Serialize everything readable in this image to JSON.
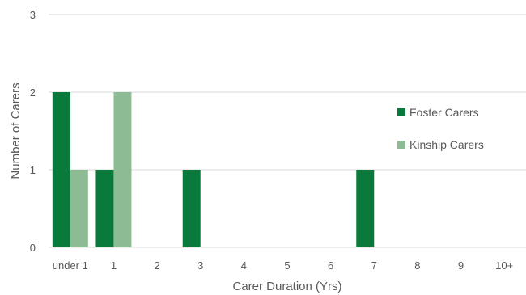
{
  "chart_data": {
    "type": "bar",
    "categories": [
      "under 1",
      "1",
      "2",
      "3",
      "4",
      "5",
      "6",
      "7",
      "8",
      "9",
      "10+"
    ],
    "series": [
      {
        "name": "Foster Carers",
        "values": [
          2,
          1,
          0,
          1,
          0,
          0,
          0,
          1,
          0,
          0,
          0
        ],
        "color": "#0a7a3c"
      },
      {
        "name": "Kinship Carers",
        "values": [
          1,
          2,
          0,
          0,
          0,
          0,
          0,
          0,
          0,
          0,
          0
        ],
        "color": "#8dbb94"
      }
    ],
    "title": "",
    "xlabel": "Carer Duration (Yrs)",
    "ylabel": "Number of Carers",
    "ylim": [
      0,
      3
    ],
    "yticks": [
      0,
      1,
      2,
      3
    ],
    "grid": true,
    "legend_position": "right"
  }
}
